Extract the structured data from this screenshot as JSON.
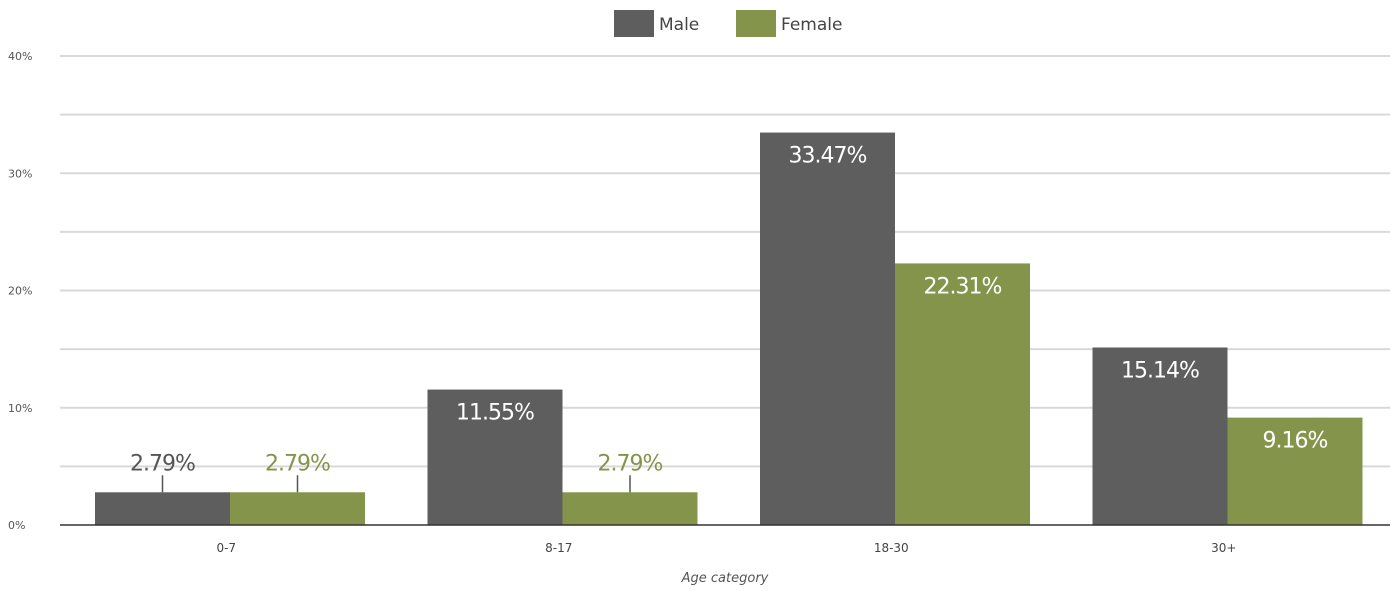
{
  "chart_data": {
    "type": "bar",
    "title": "",
    "xlabel": "Age category",
    "ylabel": "",
    "categories": [
      "0-7",
      "8-17",
      "18-30",
      "30+"
    ],
    "ylim": [
      0,
      40
    ],
    "yticks": [
      0,
      10,
      20,
      30,
      40
    ],
    "ytick_labels": [
      "0%",
      "10%",
      "20%",
      "30%",
      "40%"
    ],
    "grid": true,
    "legend_position": "top-center",
    "series": [
      {
        "name": "Male",
        "color": "#5e5e5e",
        "values": [
          2.79,
          11.55,
          33.47,
          15.14
        ],
        "labels": [
          "2.79%",
          "11.55%",
          "33.47%",
          "15.14%"
        ],
        "label_colors": [
          "#555555",
          "#ffffff",
          "#ffffff",
          "#ffffff"
        ]
      },
      {
        "name": "Female",
        "color": "#84944b",
        "values": [
          2.79,
          2.79,
          22.31,
          9.16
        ],
        "labels": [
          "2.79%",
          "2.79%",
          "22.31%",
          "9.16%"
        ],
        "label_colors": [
          "#84944b",
          "#84944b",
          "#ffffff",
          "#ffffff"
        ]
      }
    ]
  }
}
